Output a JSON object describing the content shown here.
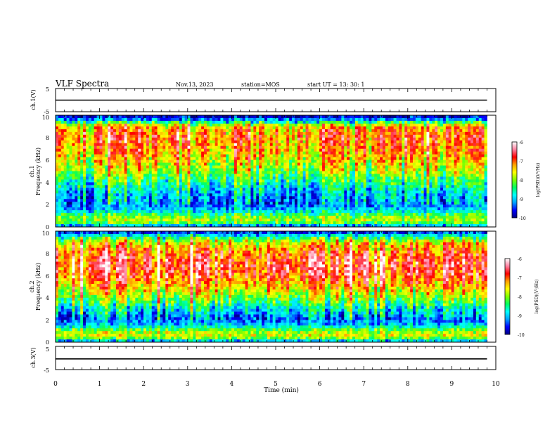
{
  "header": {
    "title": "VLF Spectra",
    "date": "Nov.13, 2023",
    "station": "station=MOS",
    "start": "start  UT =   13: 30: 1"
  },
  "colors": {
    "scale": [
      "#000080",
      "#0000ff",
      "#00a0ff",
      "#00ffff",
      "#00ff60",
      "#80ff00",
      "#ffff00",
      "#ffa000",
      "#ff0000",
      "#ff80a0",
      "#ffffff"
    ]
  },
  "chart_data": [
    {
      "type": "line",
      "ylabel": "ch.1(V)",
      "ylim": [
        -5,
        5
      ],
      "yticks": [
        "5",
        "-5"
      ],
      "series": [
        {
          "x": [
            0,
            9.8
          ],
          "values": [
            0,
            0
          ]
        }
      ]
    },
    {
      "type": "heatmap",
      "ylabel": "ch.1",
      "ylabel2": "Frequency (kHz)",
      "xlim": [
        0,
        10
      ],
      "ylim": [
        0,
        10
      ],
      "yticks": [
        "0",
        "2",
        "4",
        "6",
        "8",
        "10"
      ],
      "colorbar": {
        "label": "log(PSD)(V²/Hz)",
        "range": [
          -10,
          -6
        ],
        "ticks": [
          "-6",
          "-7",
          "-8",
          "-9",
          "-10"
        ]
      },
      "profile_freq_khz": [
        0,
        0.5,
        1,
        1.5,
        2,
        3,
        4,
        5,
        6,
        7,
        8,
        9,
        9.5,
        10
      ],
      "profile_log_psd": [
        -9.5,
        -7.8,
        -8.2,
        -9.0,
        -9.3,
        -9.1,
        -8.6,
        -8.0,
        -7.6,
        -7.3,
        -7.1,
        -7.4,
        -9.0,
        -10.0
      ]
    },
    {
      "type": "heatmap",
      "ylabel": "ch.2",
      "ylabel2": "Frequency (kHz)",
      "xlim": [
        0,
        10
      ],
      "ylim": [
        0,
        10
      ],
      "yticks": [
        "0",
        "2",
        "4",
        "6",
        "8",
        "10"
      ],
      "colorbar": {
        "label": "log(PSD)(V²/Hz)",
        "range": [
          -10,
          -6
        ],
        "ticks": [
          "-6",
          "-7",
          "-8",
          "-9",
          "-10"
        ]
      },
      "profile_freq_khz": [
        0,
        0.5,
        1,
        1.5,
        2,
        3,
        4,
        5,
        6,
        7,
        8,
        9,
        9.5,
        10
      ],
      "profile_log_psd": [
        -9.4,
        -7.6,
        -7.9,
        -9.0,
        -9.4,
        -8.8,
        -8.0,
        -7.4,
        -6.9,
        -6.7,
        -7.0,
        -7.6,
        -8.6,
        -9.8
      ]
    },
    {
      "type": "line",
      "ylabel": "ch.3(V)",
      "ylim": [
        -5,
        5
      ],
      "yticks": [
        "5",
        "-5"
      ],
      "series": [
        {
          "x": [
            0,
            9.8
          ],
          "values": [
            -0.4,
            -0.4
          ]
        }
      ]
    }
  ],
  "xaxis": {
    "label": "Time (min)",
    "xlim": [
      0,
      10
    ],
    "ticks": [
      "0",
      "1",
      "2",
      "3",
      "4",
      "5",
      "6",
      "7",
      "8",
      "9",
      "10"
    ]
  }
}
